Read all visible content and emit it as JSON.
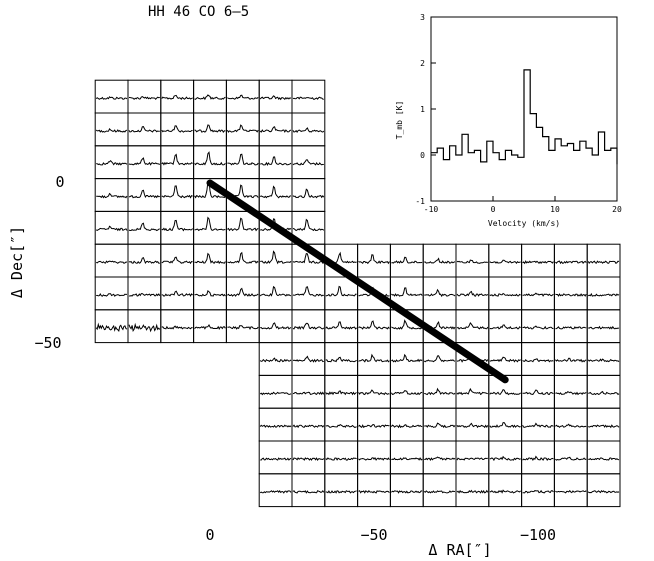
{
  "chart_data": {
    "type": "spectral-map",
    "title": "HH 46 CO 6–5",
    "xlabel": "Δ RA[″]",
    "ylabel": "Δ Dec[″]",
    "x_ticks": [
      "0",
      "−50",
      "−100"
    ],
    "y_ticks": [
      "0",
      "−50"
    ],
    "grid": {
      "cell_size_arcsec": 10,
      "rows": [
        {
          "dec": 30,
          "ra": [
            30,
            20,
            10,
            0,
            -10,
            -20,
            -30
          ]
        },
        {
          "dec": 20,
          "ra": [
            30,
            20,
            10,
            0,
            -10,
            -20,
            -30
          ]
        },
        {
          "dec": 10,
          "ra": [
            30,
            20,
            10,
            0,
            -10,
            -20,
            -30
          ]
        },
        {
          "dec": 0,
          "ra": [
            30,
            20,
            10,
            0,
            -10,
            -20,
            -30
          ]
        },
        {
          "dec": -10,
          "ra": [
            30,
            20,
            10,
            0,
            -10,
            -20,
            -30
          ]
        },
        {
          "dec": -20,
          "ra": [
            30,
            20,
            10,
            0,
            -10,
            -20,
            -30,
            -40,
            -50,
            -60,
            -70,
            -80,
            -90,
            -100,
            -110,
            -120
          ]
        },
        {
          "dec": -30,
          "ra": [
            30,
            20,
            10,
            0,
            -10,
            -20,
            -30,
            -40,
            -50,
            -60,
            -70,
            -80,
            -90,
            -100,
            -110,
            -120
          ]
        },
        {
          "dec": -40,
          "ra": [
            30,
            20,
            10,
            0,
            -10,
            -20,
            -30,
            -40,
            -50,
            -60,
            -70,
            -80,
            -90,
            -100,
            -110,
            -120
          ]
        },
        {
          "dec": -50,
          "ra": [
            -20,
            -30,
            -40,
            -50,
            -60,
            -70,
            -80,
            -90,
            -100,
            -110,
            -120
          ]
        },
        {
          "dec": -60,
          "ra": [
            -20,
            -30,
            -40,
            -50,
            -60,
            -70,
            -80,
            -90,
            -100,
            -110,
            -120
          ]
        },
        {
          "dec": -70,
          "ra": [
            -20,
            -30,
            -40,
            -50,
            -60,
            -70,
            -80,
            -90,
            -100,
            -110,
            -120
          ]
        },
        {
          "dec": -80,
          "ra": [
            -20,
            -30,
            -40,
            -50,
            -60,
            -70,
            -80,
            -90,
            -100,
            -110,
            -120
          ]
        },
        {
          "dec": -90,
          "ra": [
            -20,
            -30,
            -40,
            -50,
            -60,
            -70,
            -80,
            -90,
            -100,
            -110,
            -120
          ]
        }
      ]
    },
    "outflow_axis": {
      "start": [
        0,
        0
      ],
      "end": [
        -90,
        -60
      ]
    },
    "inset": {
      "type": "line",
      "step": true,
      "xlabel": "Velocity (km/s)",
      "ylabel": "T_mb [K]",
      "xlim": [
        -10,
        20
      ],
      "ylim": [
        -1,
        3
      ],
      "x_ticks": [
        -10,
        0,
        10,
        20
      ],
      "y_ticks": [
        -1,
        0,
        1,
        2,
        3
      ],
      "x": [
        -10,
        -9,
        -8,
        -7,
        -6,
        -5,
        -4,
        -3,
        -2,
        -1,
        0,
        1,
        2,
        3,
        4,
        5,
        6,
        7,
        8,
        9,
        10,
        11,
        12,
        13,
        14,
        15,
        16,
        17,
        18,
        19,
        20
      ],
      "y": [
        0.05,
        0.15,
        -0.1,
        0.2,
        0.0,
        0.45,
        0.05,
        0.1,
        -0.15,
        0.3,
        0.05,
        -0.1,
        0.1,
        0.0,
        -0.05,
        1.85,
        0.9,
        0.6,
        0.4,
        0.1,
        0.35,
        0.2,
        0.25,
        0.1,
        0.3,
        0.15,
        0.0,
        0.5,
        0.1,
        0.15,
        -0.2
      ]
    }
  }
}
